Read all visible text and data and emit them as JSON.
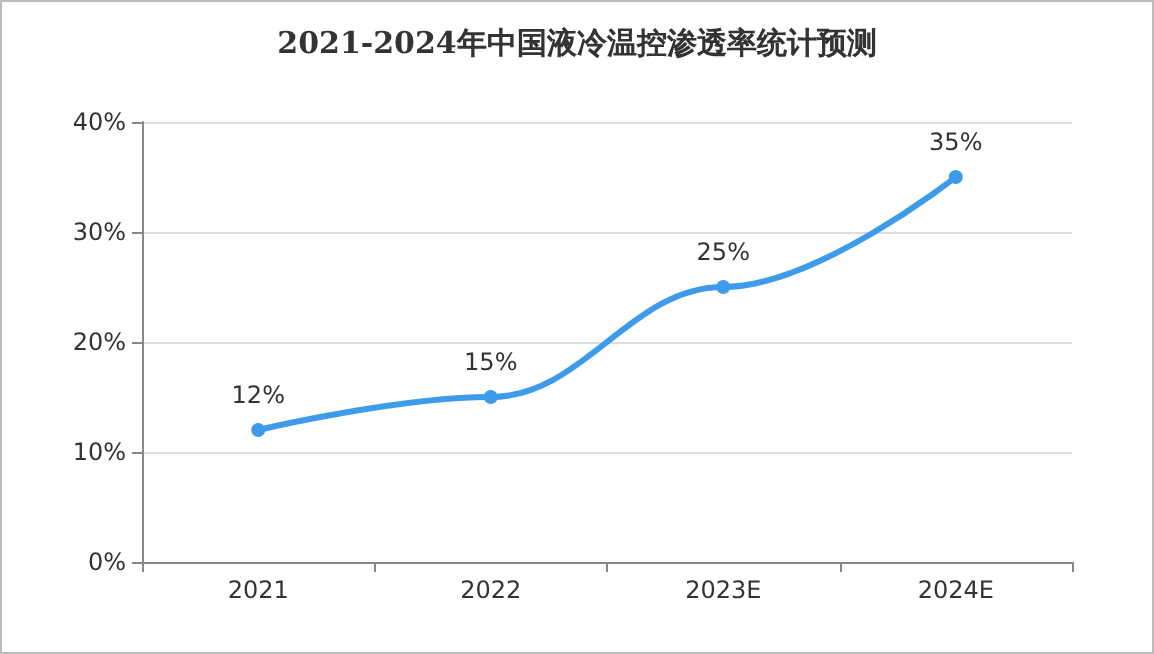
{
  "chart_data": {
    "type": "line",
    "title": "2021-2024年中国液冷温控渗透率统计预测",
    "categories": [
      "2021",
      "2022",
      "2023E",
      "2024E"
    ],
    "series": [
      {
        "color": "#3d9be9",
        "values": [
          12,
          15,
          25,
          35
        ],
        "value_labels": [
          "12%",
          "15%",
          "25%",
          "35%"
        ]
      }
    ],
    "ylim": [
      0,
      40
    ],
    "yticks": [
      {
        "value": 0,
        "label": "0%"
      },
      {
        "value": 10,
        "label": "10%"
      },
      {
        "value": 20,
        "label": "20%"
      },
      {
        "value": 30,
        "label": "30%"
      },
      {
        "value": 40,
        "label": "40%"
      }
    ],
    "grid": "y",
    "marker": "circle",
    "line_style": "solid"
  }
}
